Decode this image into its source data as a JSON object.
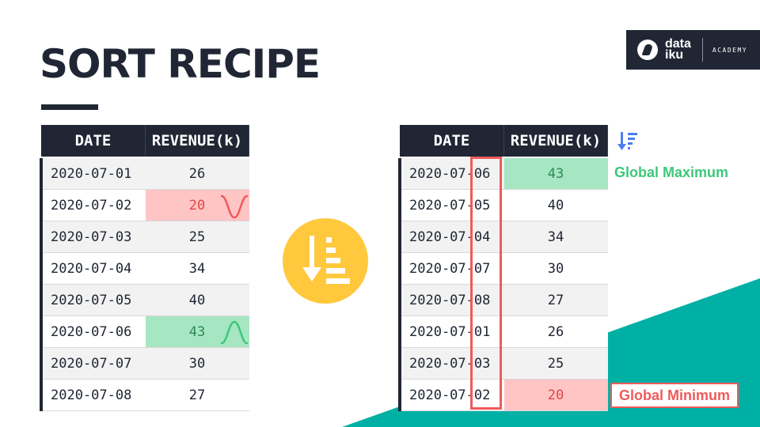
{
  "title": "SORT RECIPE",
  "logo": {
    "line1": "data",
    "line2": "iku",
    "academy": "ACADEMY"
  },
  "colors": {
    "dark": "#202634",
    "teal": "#00b0a4",
    "yellow": "#ffc83d",
    "green": "#3cc87a",
    "red": "#f05a5a"
  },
  "left_table": {
    "headers": [
      "DATE",
      "REVENUE(k)"
    ],
    "rows": [
      {
        "date": "2020-07-01",
        "revenue": "26"
      },
      {
        "date": "2020-07-02",
        "revenue": "20"
      },
      {
        "date": "2020-07-03",
        "revenue": "25"
      },
      {
        "date": "2020-07-04",
        "revenue": "34"
      },
      {
        "date": "2020-07-05",
        "revenue": "40"
      },
      {
        "date": "2020-07-06",
        "revenue": "43"
      },
      {
        "date": "2020-07-07",
        "revenue": "30"
      },
      {
        "date": "2020-07-08",
        "revenue": "27"
      }
    ]
  },
  "right_table": {
    "headers": [
      "DATE",
      "REVENUE(k)"
    ],
    "rows": [
      {
        "date": "2020-07-06",
        "revenue": "43"
      },
      {
        "date": "2020-07-05",
        "revenue": "40"
      },
      {
        "date": "2020-07-04",
        "revenue": "34"
      },
      {
        "date": "2020-07-07",
        "revenue": "30"
      },
      {
        "date": "2020-07-08",
        "revenue": "27"
      },
      {
        "date": "2020-07-01",
        "revenue": "26"
      },
      {
        "date": "2020-07-03",
        "revenue": "25"
      },
      {
        "date": "2020-07-02",
        "revenue": "20"
      }
    ]
  },
  "labels": {
    "max": "Global Maximum",
    "min": "Global Minimum"
  },
  "icons": {
    "center": "sort-descending-icon",
    "small": "sort-descending-icon",
    "min_curve": "valley-curve-icon",
    "max_curve": "peak-curve-icon"
  }
}
